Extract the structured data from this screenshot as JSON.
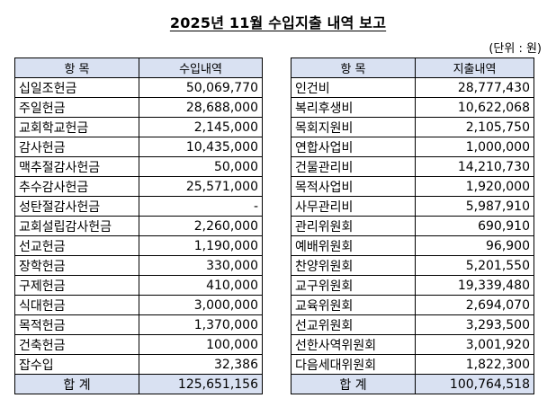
{
  "title": "2025년 11월 수입지출 내역 보고",
  "unit": "(단위 : 원)",
  "income": {
    "header_item": "항 목",
    "header_amount": "수입내역",
    "rows": [
      {
        "name": "십일조헌금",
        "amount": "50,069,770"
      },
      {
        "name": "주일헌금",
        "amount": "28,688,000"
      },
      {
        "name": "교회학교헌금",
        "amount": "2,145,000"
      },
      {
        "name": "감사헌금",
        "amount": "10,435,000"
      },
      {
        "name": "맥추절감사헌금",
        "amount": "50,000"
      },
      {
        "name": "추수감사헌금",
        "amount": "25,571,000"
      },
      {
        "name": "성탄절감사헌금",
        "amount": "-"
      },
      {
        "name": "교회설립감사헌금",
        "amount": "2,260,000"
      },
      {
        "name": "선교헌금",
        "amount": "1,190,000"
      },
      {
        "name": "장학헌금",
        "amount": "330,000"
      },
      {
        "name": "구제헌금",
        "amount": "410,000"
      },
      {
        "name": "식대헌금",
        "amount": "3,000,000"
      },
      {
        "name": "목적헌금",
        "amount": "1,370,000"
      },
      {
        "name": "건축헌금",
        "amount": "100,000"
      },
      {
        "name": "잡수입",
        "amount": "32,386"
      }
    ],
    "total_label": "합 계",
    "total_amount": "125,651,156"
  },
  "expense": {
    "header_item": "항 목",
    "header_amount": "지출내역",
    "rows": [
      {
        "name": "인건비",
        "amount": "28,777,430"
      },
      {
        "name": "복리후생비",
        "amount": "10,622,068"
      },
      {
        "name": "목회지원비",
        "amount": "2,105,750"
      },
      {
        "name": "연합사업비",
        "amount": "1,000,000"
      },
      {
        "name": "건물관리비",
        "amount": "14,210,730"
      },
      {
        "name": "목적사업비",
        "amount": "1,920,000"
      },
      {
        "name": "사무관리비",
        "amount": "5,987,910"
      },
      {
        "name": "관리위원회",
        "amount": "690,910"
      },
      {
        "name": "예배위원회",
        "amount": "96,900"
      },
      {
        "name": "찬양위원회",
        "amount": "5,201,550"
      },
      {
        "name": "교구위원회",
        "amount": "19,339,480"
      },
      {
        "name": "교육위원회",
        "amount": "2,694,070"
      },
      {
        "name": "선교위원회",
        "amount": "3,293,500"
      },
      {
        "name": "선한사역위원회",
        "amount": "3,001,920"
      },
      {
        "name": "다음세대위원회",
        "amount": "1,822,300"
      }
    ],
    "total_label": "합 계",
    "total_amount": "100,764,518"
  }
}
